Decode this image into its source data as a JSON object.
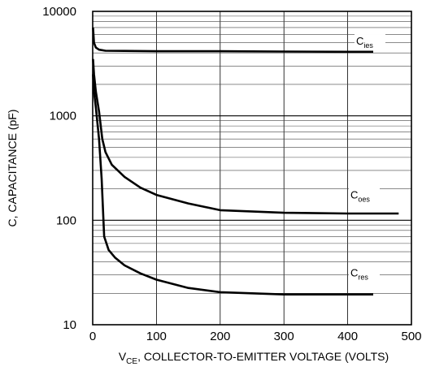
{
  "chart_data": {
    "type": "line",
    "ylabel": "C, CAPACITANCE (pF)",
    "xlabel": {
      "prefix": "V",
      "sub": "CE",
      "suffix": ", COLLECTOR-TO-EMITTER VOLTAGE (VOLTS)"
    },
    "xlim": [
      0,
      500
    ],
    "ylim": [
      10,
      10000
    ],
    "yscale": "log",
    "grid": true,
    "x_ticks": [
      "0",
      "100",
      "200",
      "300",
      "400",
      "500"
    ],
    "y_ticks": [
      "10",
      "100",
      "1000",
      "10000"
    ],
    "x_tick_values": [
      0,
      100,
      200,
      300,
      400,
      500
    ],
    "y_tick_values": [
      10,
      100,
      1000,
      10000
    ],
    "series": [
      {
        "name": "C_ies",
        "label_main": "C",
        "label_sub": "ies",
        "color": "#000000",
        "x": [
          0.5,
          2,
          5,
          10,
          20,
          50,
          100,
          200,
          300,
          400,
          440,
          448,
          478
        ],
        "y": [
          7000,
          5000,
          4500,
          4300,
          4200,
          4180,
          4150,
          4150,
          4120,
          4100,
          4100,
          null,
          4100
        ]
      },
      {
        "name": "C_oes",
        "label_main": "C",
        "label_sub": "oes",
        "color": "#000000",
        "x": [
          0.5,
          2,
          5,
          10,
          15,
          20,
          30,
          50,
          75,
          100,
          150,
          200,
          300,
          400,
          480
        ],
        "y": [
          3500,
          2500,
          1700,
          1100,
          600,
          450,
          340,
          260,
          205,
          175,
          145,
          125,
          118,
          116,
          116
        ]
      },
      {
        "name": "C_res",
        "label_main": "C",
        "label_sub": "res",
        "color": "#000000",
        "x": [
          0.5,
          2,
          5,
          10,
          14,
          18,
          25,
          35,
          50,
          75,
          100,
          150,
          200,
          300,
          400,
          440
        ],
        "y": [
          2500,
          1700,
          1200,
          600,
          250,
          70,
          52,
          44,
          37,
          31,
          27,
          22.5,
          20.5,
          19.5,
          19.5,
          19.5
        ]
      }
    ]
  }
}
